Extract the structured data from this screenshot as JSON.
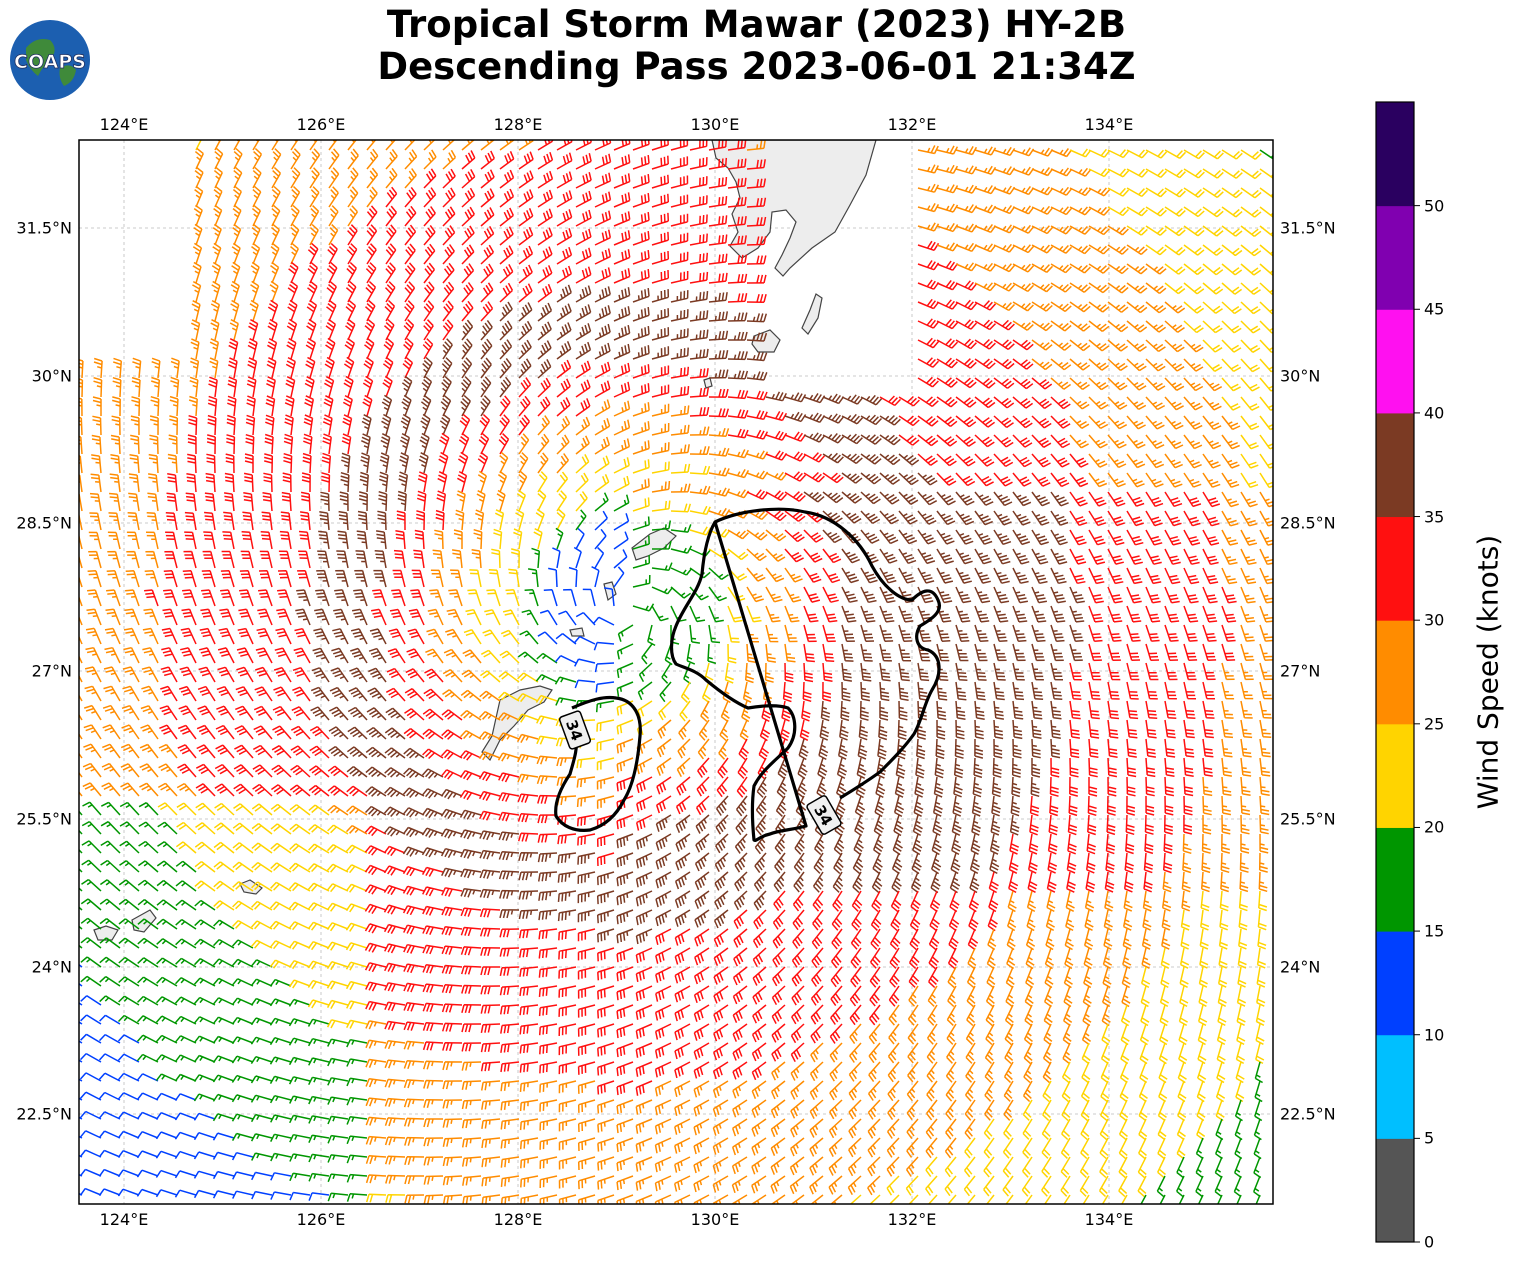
{
  "title": {
    "line1": "Tropical Storm Mawar (2023) HY-2B",
    "line2": "Descending Pass 2023-06-01 21:34Z"
  },
  "logo": {
    "text": "COAPS",
    "ocean_color": "#1c5fb0",
    "land_color": "#3f8a3a"
  },
  "axes": {
    "lon_labels": [
      "124°E",
      "126°E",
      "128°E",
      "130°E",
      "132°E",
      "134°E"
    ],
    "lat_labels": [
      "31.5°N",
      "30°N",
      "28.5°N",
      "27°N",
      "25.5°N",
      "24°N",
      "22.5°N"
    ],
    "gridline_color": "#bbbbbb",
    "grid": true
  },
  "contour": {
    "label": "34",
    "labels": [
      "34",
      "34"
    ],
    "color": "#000000"
  },
  "colorbar": {
    "title": "Wind Speed (knots)",
    "ticks": [
      "0",
      "5",
      "10",
      "15",
      "20",
      "25",
      "30",
      "35",
      "40",
      "45",
      "50"
    ],
    "colors": [
      "#555555",
      "#00bfff",
      "#0040ff",
      "#009600",
      "#ffd400",
      "#ff8c00",
      "#ff1010",
      "#7b3a23",
      "#ff10f0",
      "#8000b0",
      "#2a0060"
    ]
  },
  "legend_colors": {
    "land": "#ededed",
    "coast": "#444444"
  }
}
